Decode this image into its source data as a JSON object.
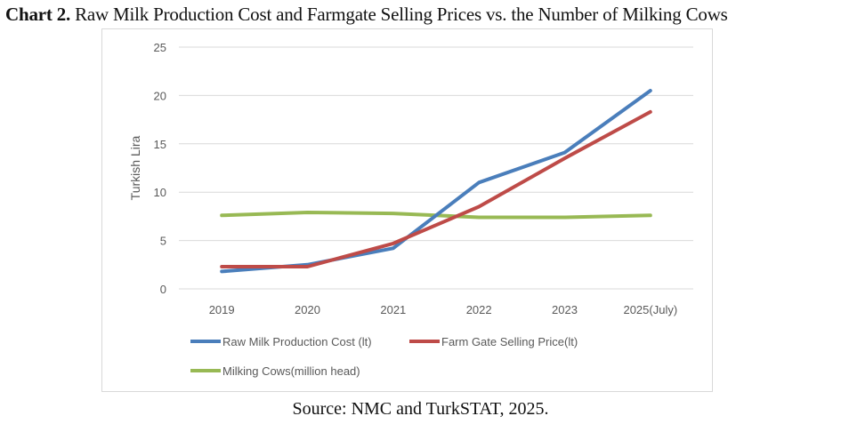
{
  "caption": {
    "label": "Chart 2.",
    "text": " Raw Milk Production Cost and Farmgate Selling Prices vs. the Number of Milking Cows"
  },
  "source": "Source: NMC and TurkSTAT, 2025.",
  "chart_data": {
    "type": "line",
    "title": "Raw Milk Production Cost and Farmgate Selling Prices vs. the Number of Milking Cows",
    "xlabel": "",
    "ylabel": "Turkish Lira",
    "categories": [
      "2019",
      "2020",
      "2021",
      "2022",
      "2023",
      "2025(July)"
    ],
    "ylim": [
      0,
      25
    ],
    "yticks": [
      0,
      5,
      10,
      15,
      20,
      25
    ],
    "grid": true,
    "legend_position": "bottom",
    "series": [
      {
        "name": "Raw Milk Production Cost (lt)",
        "color": "#4a7ebb",
        "values": [
          1.8,
          2.5,
          4.2,
          11.0,
          14.1,
          20.5
        ]
      },
      {
        "name": "Farm Gate Selling Price(lt)",
        "color": "#be4b48",
        "values": [
          2.3,
          2.3,
          4.7,
          8.5,
          13.5,
          18.3
        ]
      },
      {
        "name": "Milking Cows(million head)",
        "color": "#98b954",
        "values": [
          7.6,
          7.9,
          7.8,
          7.4,
          7.4,
          7.6
        ]
      }
    ]
  }
}
